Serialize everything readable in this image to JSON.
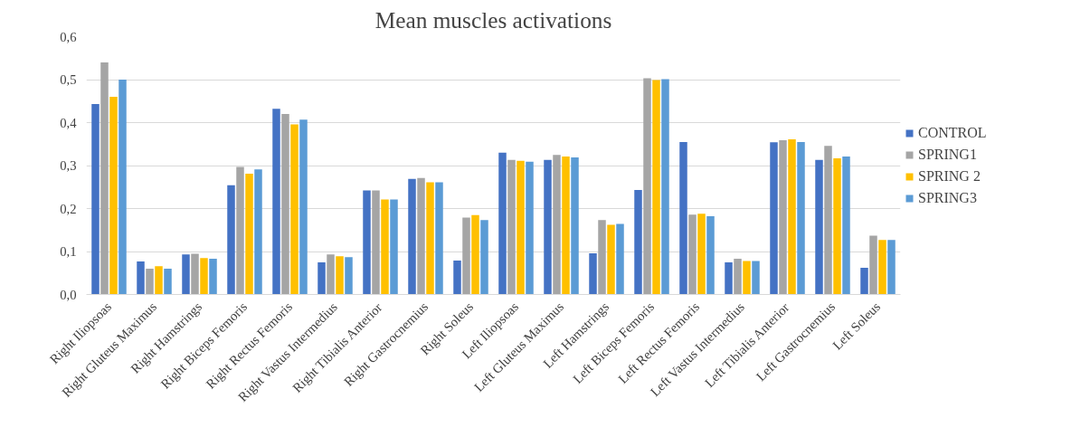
{
  "chart_data": {
    "type": "bar",
    "title": "Mean muscles activations",
    "categories": [
      "Right Iliopsoas",
      "Right Gluteus Maximus",
      "Right Hamstrings",
      "Right Biceps Femoris",
      "Right Rectus Femoris",
      "Right Vastus Intermedius",
      "Right Tibialis Anterior",
      "Right Gastrocnemius",
      "Right Soleus",
      "Left Iliopsoas",
      "Left Gluteus Maximus",
      "Left Hamstrings",
      "Left Biceps Femoris",
      "Left Rectus Femoris",
      "Left Vastus Intermedius",
      "Left Tibialis Anterior",
      "Left Gastrocnemius",
      "Left Soleus"
    ],
    "series": [
      {
        "name": "CONTROL",
        "color": "#4472c4",
        "values": [
          0.443,
          0.077,
          0.093,
          0.254,
          0.432,
          0.075,
          0.242,
          0.269,
          0.079,
          0.33,
          0.313,
          0.096,
          0.243,
          0.355,
          0.075,
          0.354,
          0.313,
          0.062
        ]
      },
      {
        "name": "SPRING1",
        "color": "#a5a5a5",
        "values": [
          0.54,
          0.06,
          0.095,
          0.297,
          0.42,
          0.093,
          0.242,
          0.271,
          0.179,
          0.313,
          0.325,
          0.173,
          0.503,
          0.186,
          0.083,
          0.359,
          0.346,
          0.137
        ]
      },
      {
        "name": "SPRING 2",
        "color": "#ffc000",
        "values": [
          0.46,
          0.066,
          0.085,
          0.281,
          0.396,
          0.089,
          0.221,
          0.261,
          0.185,
          0.311,
          0.321,
          0.162,
          0.499,
          0.188,
          0.078,
          0.361,
          0.317,
          0.127
        ]
      },
      {
        "name": "SPRING3",
        "color": "#5b9bd5",
        "values": [
          0.5,
          0.06,
          0.083,
          0.291,
          0.407,
          0.087,
          0.221,
          0.261,
          0.173,
          0.309,
          0.319,
          0.164,
          0.501,
          0.182,
          0.078,
          0.355,
          0.321,
          0.127
        ]
      }
    ],
    "ylim": [
      0,
      0.6
    ],
    "yticks": [
      {
        "value": 0,
        "label": "0,0"
      },
      {
        "value": 0.1,
        "label": "0,1"
      },
      {
        "value": 0.2,
        "label": "0,2"
      },
      {
        "value": 0.3,
        "label": "0,3"
      },
      {
        "value": 0.4,
        "label": "0,4"
      },
      {
        "value": 0.5,
        "label": "0,5"
      },
      {
        "value": 0.6,
        "label": "0,6"
      }
    ],
    "grid": "y",
    "legend": "right"
  }
}
